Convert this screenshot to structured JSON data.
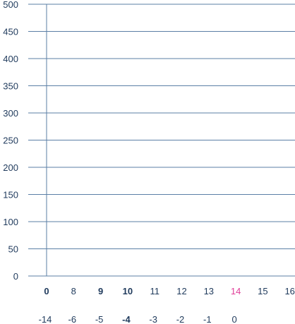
{
  "colors": {
    "grid": "#5b7fa6",
    "text": "#1f3a5c",
    "highlight": "#e0409a"
  },
  "chart_data": {
    "type": "line",
    "title": "",
    "xlabel": "",
    "ylabel": "",
    "grid": true,
    "ylim": [
      0,
      500
    ],
    "y_ticks": [
      "0",
      "50",
      "100",
      "150",
      "200",
      "250",
      "300",
      "350",
      "400",
      "450",
      "500"
    ],
    "x_ticks": [
      {
        "label": "0",
        "bold": true,
        "highlight": false
      },
      {
        "label": "8",
        "bold": false,
        "highlight": false
      },
      {
        "label": "9",
        "bold": true,
        "highlight": false
      },
      {
        "label": "10",
        "bold": true,
        "highlight": false
      },
      {
        "label": "11",
        "bold": false,
        "highlight": false
      },
      {
        "label": "12",
        "bold": false,
        "highlight": false
      },
      {
        "label": "13",
        "bold": false,
        "highlight": false
      },
      {
        "label": "14",
        "bold": false,
        "highlight": true
      },
      {
        "label": "15",
        "bold": false,
        "highlight": false
      },
      {
        "label": "16",
        "bold": false,
        "highlight": false
      }
    ],
    "x2_ticks": [
      {
        "label": "-14",
        "bold": false
      },
      {
        "label": "-6",
        "bold": false
      },
      {
        "label": "-5",
        "bold": false
      },
      {
        "label": "-4",
        "bold": true
      },
      {
        "label": "-3",
        "bold": false
      },
      {
        "label": "-2",
        "bold": false
      },
      {
        "label": "-1",
        "bold": false
      },
      {
        "label": "0",
        "bold": false
      }
    ],
    "series": []
  }
}
